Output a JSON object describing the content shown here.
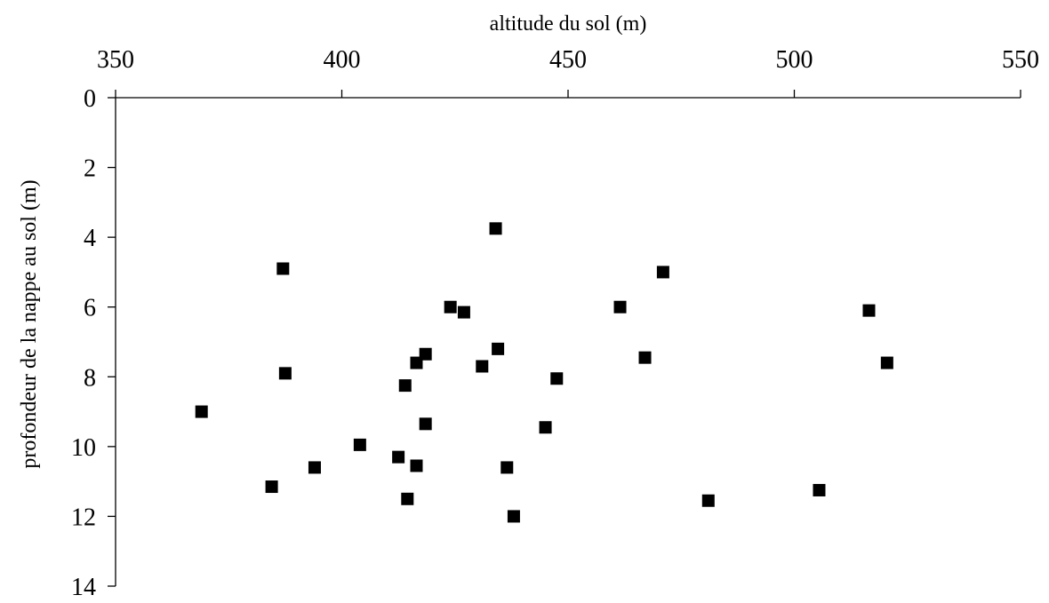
{
  "chart_data": {
    "type": "scatter",
    "title": "",
    "xlabel": "altitude du sol (m)",
    "ylabel": "profondeur de la nappe au sol (m)",
    "x_axis_position": "top",
    "y_axis_inverted": true,
    "xlim": [
      350,
      550
    ],
    "ylim": [
      0,
      14
    ],
    "x_ticks": [
      350,
      400,
      450,
      500,
      550
    ],
    "y_ticks": [
      0,
      2,
      4,
      6,
      8,
      10,
      12,
      14
    ],
    "grid": false,
    "legend": "none",
    "marker": "square",
    "marker_color": "#000000",
    "points": [
      {
        "x": 369,
        "y": 9.0
      },
      {
        "x": 384.5,
        "y": 11.15
      },
      {
        "x": 387,
        "y": 4.9
      },
      {
        "x": 387.5,
        "y": 7.9
      },
      {
        "x": 394,
        "y": 10.6
      },
      {
        "x": 404,
        "y": 9.95
      },
      {
        "x": 412.5,
        "y": 10.3
      },
      {
        "x": 414,
        "y": 8.25
      },
      {
        "x": 414.5,
        "y": 11.5
      },
      {
        "x": 416.5,
        "y": 7.6
      },
      {
        "x": 416.5,
        "y": 10.55
      },
      {
        "x": 418.5,
        "y": 7.35
      },
      {
        "x": 418.5,
        "y": 9.35
      },
      {
        "x": 424,
        "y": 6.0
      },
      {
        "x": 427,
        "y": 6.15
      },
      {
        "x": 431,
        "y": 7.7
      },
      {
        "x": 434,
        "y": 3.75
      },
      {
        "x": 434.5,
        "y": 7.2
      },
      {
        "x": 436.5,
        "y": 10.6
      },
      {
        "x": 438,
        "y": 12.0
      },
      {
        "x": 445,
        "y": 9.45
      },
      {
        "x": 447.5,
        "y": 8.05
      },
      {
        "x": 461.5,
        "y": 6.0
      },
      {
        "x": 467,
        "y": 7.45
      },
      {
        "x": 471,
        "y": 5.0
      },
      {
        "x": 481,
        "y": 11.55
      },
      {
        "x": 505.5,
        "y": 11.25
      },
      {
        "x": 516.5,
        "y": 6.1
      },
      {
        "x": 520.5,
        "y": 7.6
      }
    ]
  }
}
